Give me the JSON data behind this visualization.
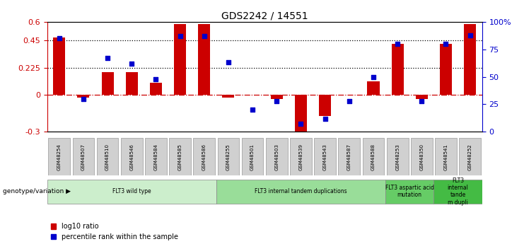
{
  "title": "GDS2242 / 14551",
  "samples": [
    "GSM48254",
    "GSM48507",
    "GSM48510",
    "GSM48546",
    "GSM48584",
    "GSM48585",
    "GSM48586",
    "GSM48255",
    "GSM48501",
    "GSM48503",
    "GSM48539",
    "GSM48543",
    "GSM48587",
    "GSM48588",
    "GSM48253",
    "GSM48350",
    "GSM48541",
    "GSM48252"
  ],
  "log10_ratio": [
    0.47,
    -0.02,
    0.19,
    0.19,
    0.1,
    0.58,
    0.58,
    -0.02,
    0.0,
    -0.03,
    -0.32,
    -0.17,
    0.0,
    0.11,
    0.42,
    -0.03,
    0.42,
    0.58
  ],
  "percentile_rank": [
    85,
    30,
    67,
    62,
    48,
    87,
    87,
    63,
    20,
    28,
    7,
    12,
    28,
    50,
    80,
    28,
    80,
    88
  ],
  "ylim_left": [
    -0.3,
    0.6
  ],
  "ylim_right": [
    0,
    100
  ],
  "yticks_left": [
    -0.3,
    0.0,
    0.225,
    0.45,
    0.6
  ],
  "ytick_labels_left": [
    "-0.3",
    "0",
    "0.225",
    "0.45",
    "0.6"
  ],
  "yticks_right": [
    0,
    25,
    50,
    75,
    100
  ],
  "ytick_labels_right": [
    "0",
    "25",
    "50",
    "75",
    "100%"
  ],
  "hlines": [
    0.45,
    0.225
  ],
  "bar_color": "#cc0000",
  "dot_color": "#0000cc",
  "zero_line_color": "#cc0000",
  "background_color": "#ffffff",
  "plot_bg_color": "#ffffff",
  "groups": [
    {
      "label": "FLT3 wild type",
      "start": 0,
      "end": 7,
      "color": "#cceecc"
    },
    {
      "label": "FLT3 internal tandem duplications",
      "start": 7,
      "end": 14,
      "color": "#99dd99"
    },
    {
      "label": "FLT3 aspartic acid\nmutation",
      "start": 14,
      "end": 16,
      "color": "#66cc66"
    },
    {
      "label": "FLT3\ninternal\ntande\nm dupli",
      "start": 16,
      "end": 18,
      "color": "#44bb44"
    }
  ],
  "legend_items": [
    {
      "label": "log10 ratio",
      "color": "#cc0000"
    },
    {
      "label": "percentile rank within the sample",
      "color": "#0000cc"
    }
  ],
  "genotype_label": "genotype/variation"
}
